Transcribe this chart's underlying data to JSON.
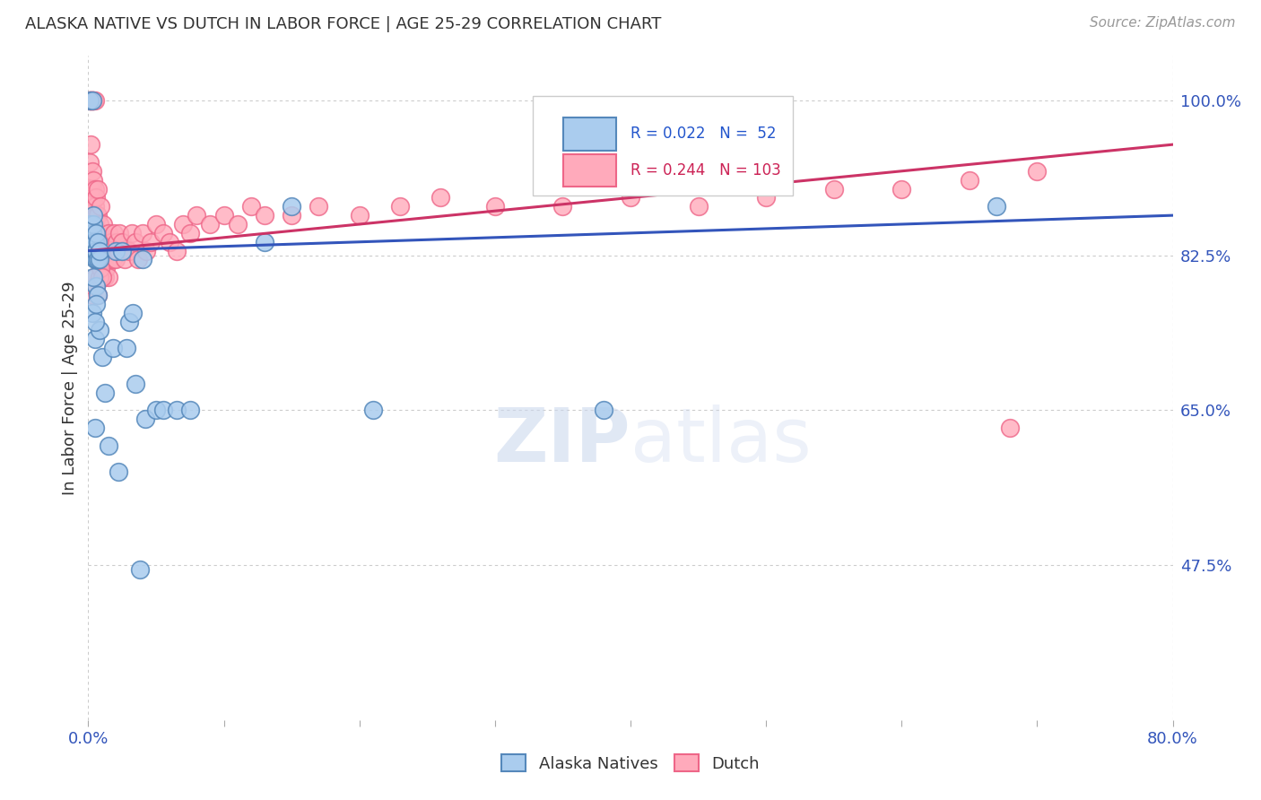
{
  "title": "ALASKA NATIVE VS DUTCH IN LABOR FORCE | AGE 25-29 CORRELATION CHART",
  "source": "Source: ZipAtlas.com",
  "ylabel": "In Labor Force | Age 25-29",
  "ytick_vals": [
    0.475,
    0.65,
    0.825,
    1.0
  ],
  "ytick_labels": [
    "47.5%",
    "65.0%",
    "82.5%",
    "100.0%"
  ],
  "blue_face": "#aaccee",
  "blue_edge": "#5588bb",
  "pink_face": "#ffaabb",
  "pink_edge": "#ee6688",
  "blue_line": "#3355bb",
  "pink_line": "#cc3366",
  "xmin": 0.0,
  "xmax": 0.8,
  "ymin": 0.3,
  "ymax": 1.05,
  "blue_trend_x0": 0.0,
  "blue_trend_y0": 0.83,
  "blue_trend_x1": 0.8,
  "blue_trend_y1": 0.87,
  "pink_trend_x0": 0.0,
  "pink_trend_y0": 0.83,
  "pink_trend_x1": 0.8,
  "pink_trend_y1": 0.95,
  "legend_r_blue": "R = 0.022",
  "legend_n_blue": "N =  52",
  "legend_r_pink": "R = 0.244",
  "legend_n_pink": "N = 103"
}
